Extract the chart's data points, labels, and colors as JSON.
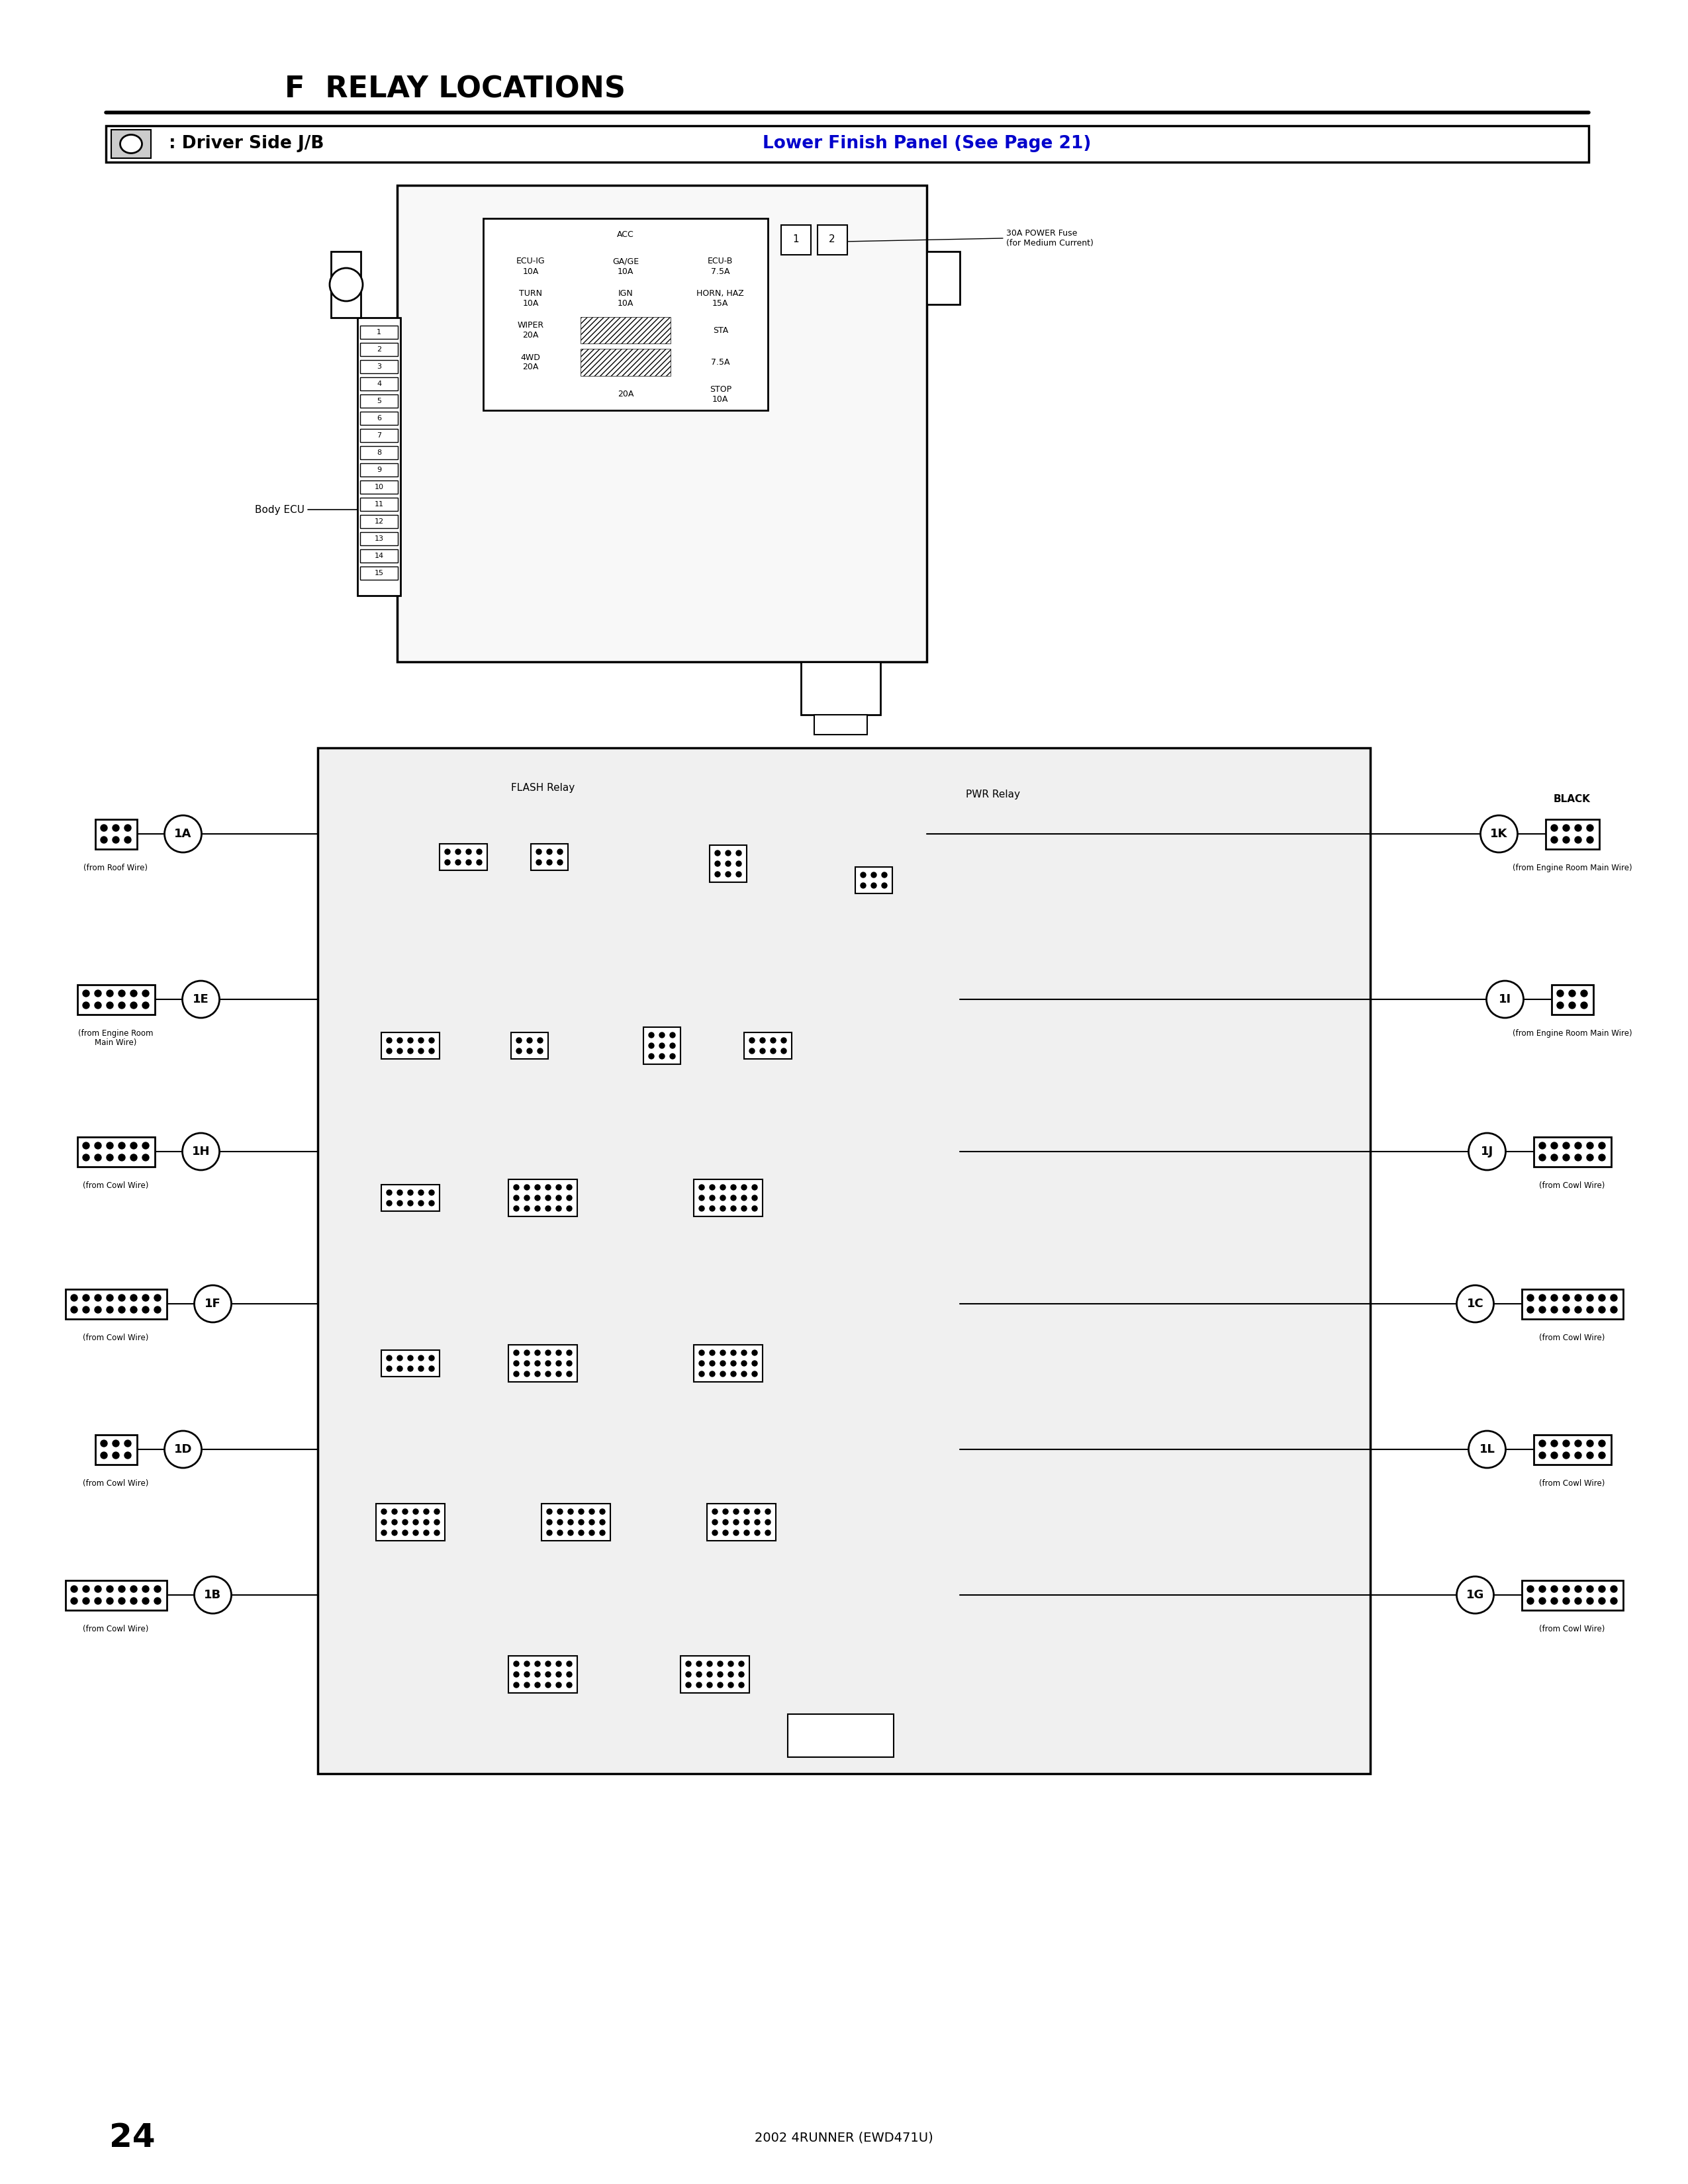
{
  "title": "F  RELAY LOCATIONS",
  "subtitle_left": ": Driver Side J/B",
  "subtitle_right": "Lower Finish Panel (See Page 21)",
  "page_number": "24",
  "footer_text": "2002 4RUNNER (EWD471U)",
  "background_color": "#ffffff",
  "text_color": "#000000",
  "blue_color": "#0000cc",
  "title_fontsize": 28,
  "body_ecu_label": "Body ECU",
  "flash_relay_label": "FLASH Relay",
  "pwr_relay_label": "PWR Relay",
  "black_label": "BLACK",
  "30A_fuse_label": "30A POWER Fuse\n(for Medium Current)",
  "left_connectors": [
    {
      "id": "1A",
      "sub": "(from Roof Wire)",
      "rows": 2,
      "cols": 3
    },
    {
      "id": "1E",
      "sub": "(from Engine Room\nMain Wire)",
      "rows": 2,
      "cols": 6
    },
    {
      "id": "1H",
      "sub": "(from Cowl Wire)",
      "rows": 2,
      "cols": 6
    },
    {
      "id": "1F",
      "sub": "(from Cowl Wire)",
      "rows": 2,
      "cols": 8
    },
    {
      "id": "1D",
      "sub": "(from Cowl Wire)",
      "rows": 2,
      "cols": 3
    },
    {
      "id": "1B",
      "sub": "(from Cowl Wire)",
      "rows": 2,
      "cols": 8
    }
  ],
  "right_connectors": [
    {
      "id": "1K",
      "sub": "(from Engine Room Main Wire)",
      "rows": 2,
      "cols": 4,
      "top_label": "BLACK"
    },
    {
      "id": "1I",
      "sub": "(from Engine Room Main Wire)",
      "rows": 2,
      "cols": 3
    },
    {
      "id": "1J",
      "sub": "(from Cowl Wire)",
      "rows": 2,
      "cols": 6
    },
    {
      "id": "1C",
      "sub": "(from Cowl Wire)",
      "rows": 2,
      "cols": 8
    },
    {
      "id": "1L",
      "sub": "(from Cowl Wire)",
      "rows": 2,
      "cols": 6
    },
    {
      "id": "1G",
      "sub": "(from Cowl Wire)",
      "rows": 2,
      "cols": 8
    }
  ]
}
